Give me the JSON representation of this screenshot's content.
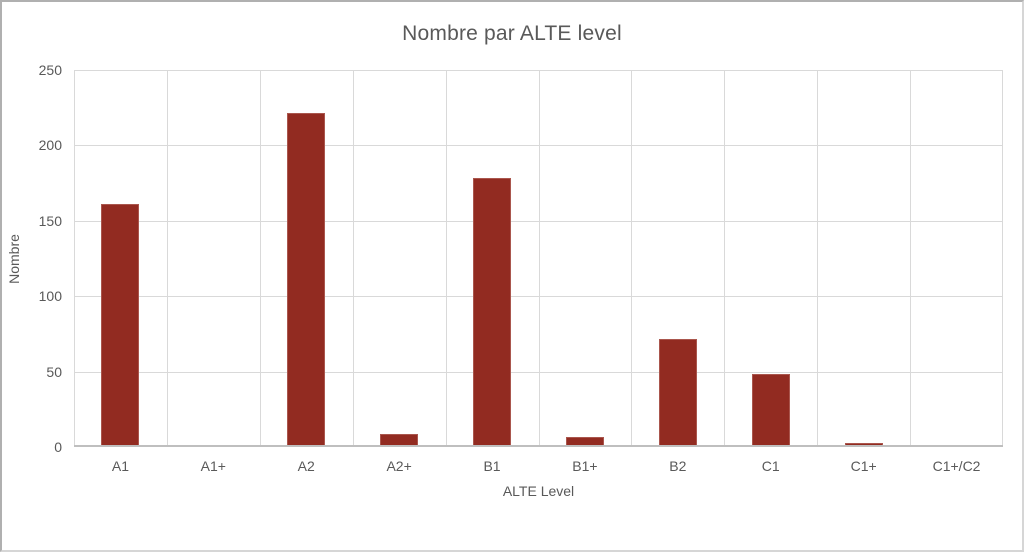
{
  "chart_data": {
    "type": "bar",
    "title": "Nombre par ALTE level",
    "xlabel": "ALTE Level",
    "ylabel": "Nombre",
    "categories": [
      "A1",
      "A1+",
      "A2",
      "A2+",
      "B1",
      "B1+",
      "B2",
      "C1",
      "C1+",
      "C1+/C2"
    ],
    "values": [
      160,
      0,
      220,
      7,
      177,
      5,
      70,
      47,
      1,
      0
    ],
    "series_name": "Nombre",
    "ylim": [
      0,
      250
    ],
    "yticks": [
      0,
      50,
      100,
      150,
      200,
      250
    ],
    "grid": true,
    "legend_position": "none",
    "bar_color": "#922b21",
    "bar_edge_color": "#aa564d",
    "gridline_color": "#d9d9d9",
    "axis_line_color": "#bfbfbf",
    "text_color": "#595959",
    "background_color": "#ffffff"
  }
}
